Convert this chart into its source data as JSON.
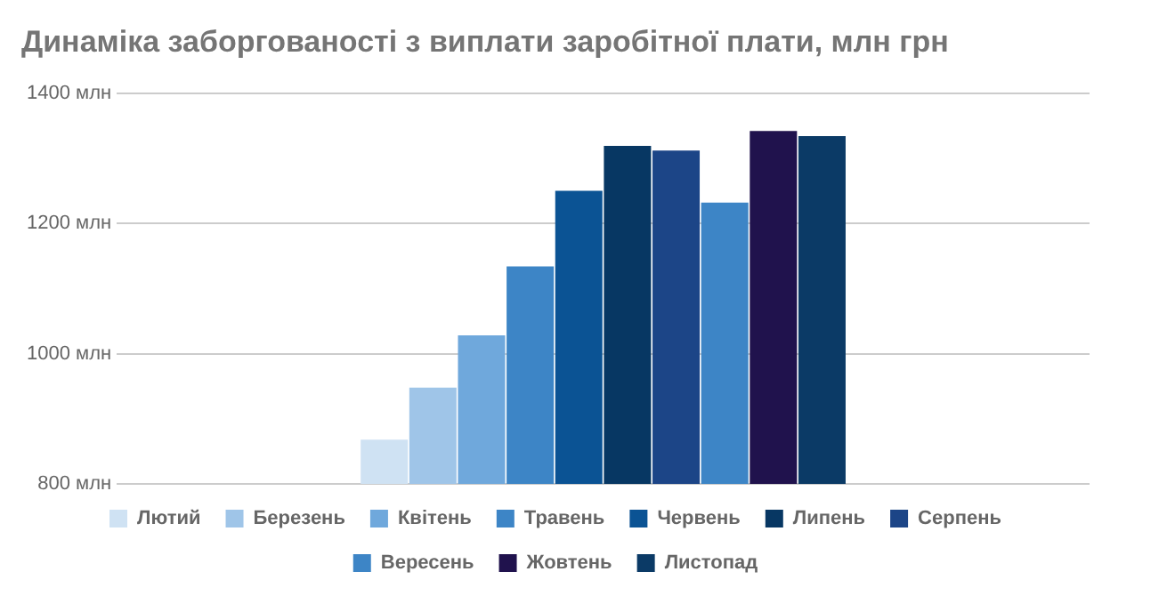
{
  "chart_data": {
    "type": "bar",
    "title": "Динаміка заборгованості з виплати заробітної плати, млн грн",
    "categories": [
      null
    ],
    "series": [
      {
        "name": "Лютий",
        "color": "#cfe2f3",
        "values": [
          868
        ]
      },
      {
        "name": "Березень",
        "color": "#9fc5e8",
        "values": [
          948
        ]
      },
      {
        "name": "Квітень",
        "color": "#6fa8dc",
        "values": [
          1028
        ]
      },
      {
        "name": "Травень",
        "color": "#3d85c6",
        "values": [
          1134
        ]
      },
      {
        "name": "Червень",
        "color": "#0b5394",
        "values": [
          1250
        ]
      },
      {
        "name": "Липень",
        "color": "#073763",
        "values": [
          1319
        ]
      },
      {
        "name": "Серпень",
        "color": "#1c4587",
        "values": [
          1312
        ]
      },
      {
        "name": "Вересень",
        "color": "#3d85c6",
        "values": [
          1232
        ]
      },
      {
        "name": "Жовтень",
        "color": "#20124d",
        "values": [
          1342
        ]
      },
      {
        "name": "Листопад",
        "color": "#0b3a66",
        "values": [
          1334
        ]
      }
    ],
    "ylim": [
      800,
      1400
    ],
    "yticks": [
      {
        "value": 800,
        "label": "800 млн"
      },
      {
        "value": 1000,
        "label": "1000 млн"
      },
      {
        "value": 1200,
        "label": "1200 млн"
      },
      {
        "value": 1400,
        "label": "1400 млн"
      }
    ],
    "grid": "y",
    "legend": "bottom"
  }
}
